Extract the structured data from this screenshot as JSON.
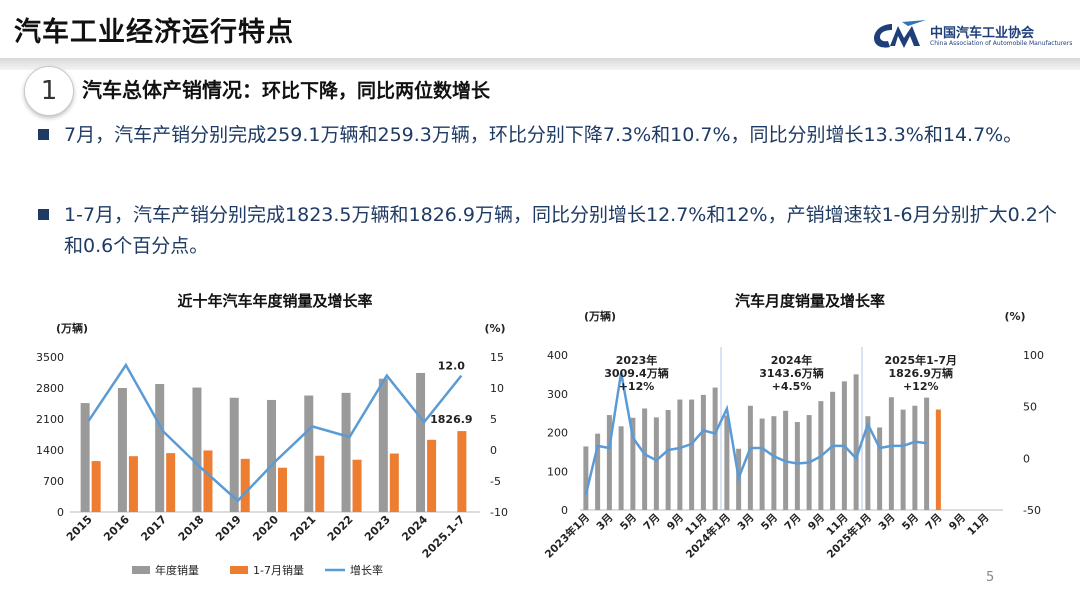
{
  "header": {
    "title": "汽车工业经济运行特点",
    "logo_cn": "中国汽车工业协会",
    "logo_en": "China Association of Automobile Manufacturers"
  },
  "section": {
    "number": "1",
    "heading": "汽车总体产销情况：",
    "subheading": "环比下降，同比两位数增长"
  },
  "bullets": [
    "7月，汽车产销分别完成259.1万辆和259.3万辆，环比分别下降7.3%和10.7%，同比分别增长13.3%和14.7%。",
    "1-7月，汽车产销分别完成1823.5万辆和1826.9万辆，同比分别增长12.7%和12%，产销增速较1-6月分别扩大0.2个和0.6个百分点。"
  ],
  "page_number": "5",
  "colors": {
    "gray_bar": "#9a9a9a",
    "orange_bar": "#ed7d31",
    "line": "#5b9bd5",
    "text_blue": "#1f3b64"
  },
  "chart_data": [
    {
      "type": "bar",
      "title": "近十年汽车年度销量及增长率",
      "y_left_unit": "(万辆)",
      "y_right_unit": "(%)",
      "categories": [
        "2015",
        "2016",
        "2017",
        "2018",
        "2019",
        "2020",
        "2021",
        "2022",
        "2023",
        "2024",
        "2025.1-7"
      ],
      "ylim": [
        0,
        3500
      ],
      "y_ticks": [
        0,
        700,
        1400,
        2100,
        2800,
        3500
      ],
      "y2lim": [
        -10,
        15
      ],
      "y2_ticks": [
        -10,
        -5,
        0,
        5,
        10,
        15
      ],
      "series": [
        {
          "name": "年度销量",
          "kind": "bar",
          "values": [
            2460,
            2800,
            2890,
            2810,
            2580,
            2530,
            2630,
            2690,
            3010,
            3140,
            null
          ]
        },
        {
          "name": "1-7月销量",
          "kind": "bar",
          "values": [
            1150,
            1260,
            1330,
            1390,
            1200,
            1000,
            1270,
            1180,
            1320,
            1630,
            1826.9
          ]
        },
        {
          "name": "增长率",
          "kind": "line",
          "axis": "right",
          "values": [
            4.7,
            13.7,
            3.0,
            -2.8,
            -8.2,
            -1.9,
            3.8,
            2.1,
            12.0,
            4.5,
            12.0
          ]
        }
      ],
      "annotations": [
        {
          "label": "12.0",
          "series": "增长率",
          "category": "2025.1-7"
        },
        {
          "label": "1826.9",
          "series": "1-7月销量",
          "category": "2025.1-7"
        }
      ],
      "legend": [
        "年度销量",
        "1-7月销量",
        "增长率"
      ],
      "legend_position": "bottom"
    },
    {
      "type": "bar",
      "title": "汽车月度销量及增长率",
      "y_left_unit": "(万辆)",
      "y_right_unit": "(%)",
      "x_ticks": [
        "2023年1月",
        "3月",
        "5月",
        "7月",
        "9月",
        "11月",
        "2024年1月",
        "3月",
        "5月",
        "7月",
        "9月",
        "11月",
        "2025年1月",
        "3月",
        "5月",
        "7月",
        "9月",
        "11月"
      ],
      "ylim": [
        0,
        400
      ],
      "y_ticks": [
        0,
        100,
        200,
        300,
        400
      ],
      "y2lim": [
        -50,
        100
      ],
      "y2_ticks": [
        -50,
        0,
        50,
        100
      ],
      "months": 36,
      "bars_gray": [
        164,
        197,
        245,
        216,
        238,
        262,
        239,
        258,
        285,
        285,
        297,
        316,
        244,
        158,
        269,
        236,
        242,
        256,
        227,
        245,
        281,
        305,
        332,
        350,
        242,
        213,
        291,
        259,
        269,
        290,
        null,
        null,
        null,
        null,
        null,
        null
      ],
      "bar_orange": {
        "month_index": 30,
        "value": 259.3
      },
      "growth": [
        -35,
        12,
        10,
        83,
        20,
        4,
        -2,
        8,
        10,
        14,
        27,
        24,
        48,
        -19,
        10,
        10,
        2,
        -3,
        -5,
        -4,
        2,
        12,
        12,
        0,
        33,
        10,
        12,
        12,
        16,
        14.7,
        null,
        null,
        null,
        null,
        null,
        null
      ],
      "annotations": [
        {
          "lines": [
            "2023年",
            "3009.4万辆",
            "+12%"
          ]
        },
        {
          "lines": [
            "2024年",
            "3143.6万辆",
            "+4.5%"
          ]
        },
        {
          "lines": [
            "2025年1-7月",
            "1826.9万辆",
            "+12%"
          ]
        }
      ],
      "dividers_after_month_index": [
        11,
        23
      ]
    }
  ]
}
